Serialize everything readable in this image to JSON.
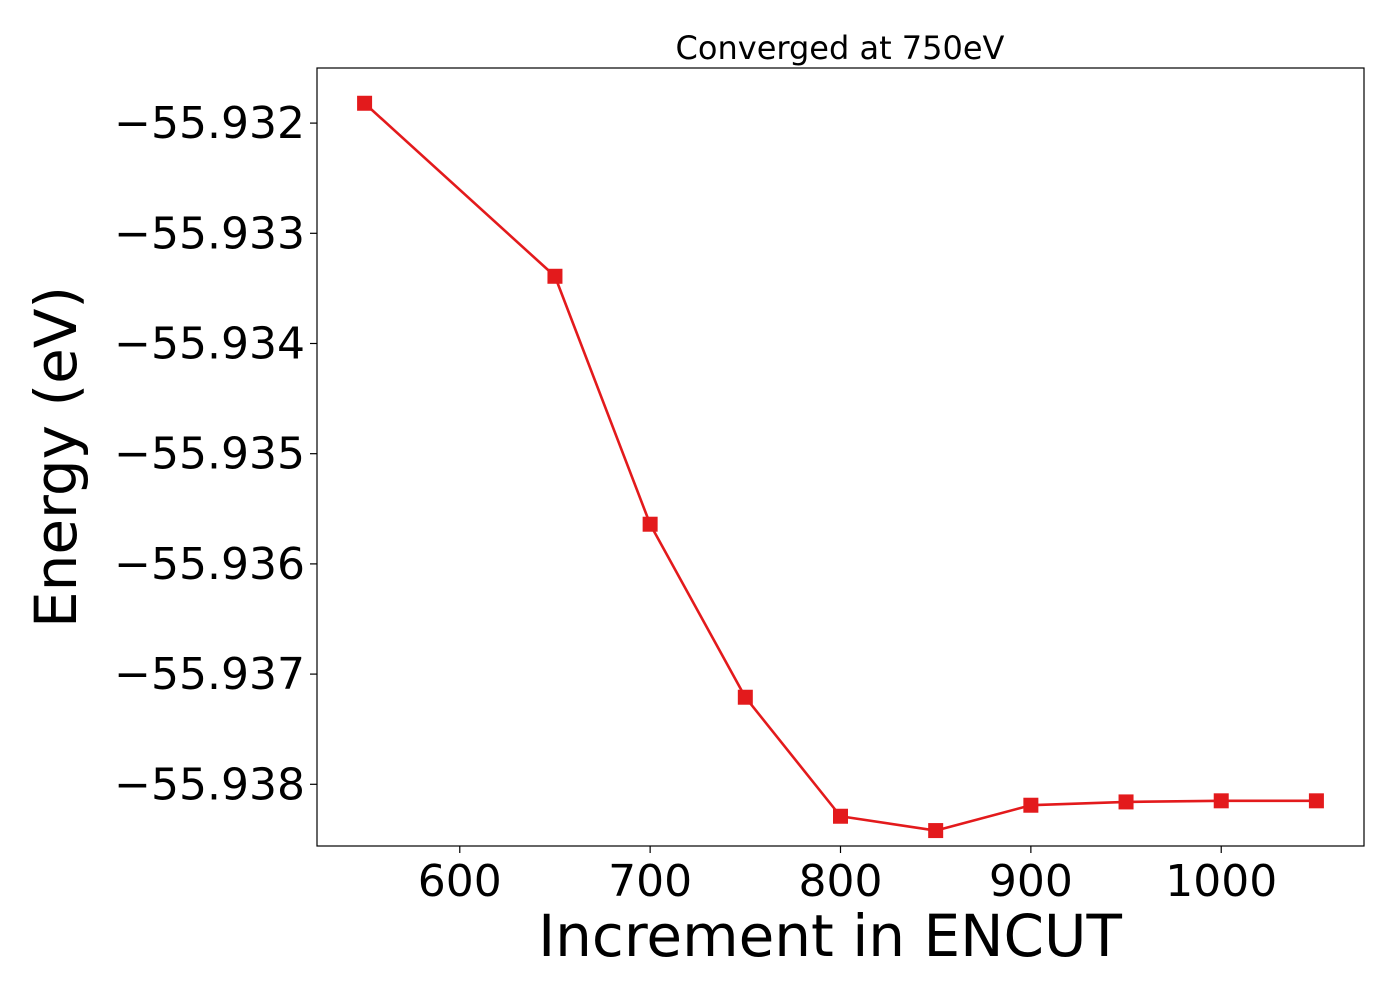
{
  "chart_data": {
    "type": "line",
    "title": "Converged at 750eV",
    "xlabel": "Increment in ENCUT",
    "ylabel": "Energy (eV)",
    "x": [
      550,
      650,
      700,
      750,
      800,
      850,
      900,
      950,
      1000,
      1050
    ],
    "series": [
      {
        "values": [
          -55.93182,
          -55.93339,
          -55.93564,
          -55.93721,
          -55.93829,
          -55.93842,
          -55.93819,
          -55.93816,
          -55.93815,
          -55.93815
        ],
        "color": "#e31a1c",
        "marker": "square"
      }
    ],
    "xlim": [
      525,
      1075
    ],
    "ylim": [
      -55.93856,
      -55.9315
    ],
    "xticks": [
      600,
      700,
      800,
      900,
      1000
    ],
    "xtick_labels": [
      "600",
      "700",
      "800",
      "900",
      "1000"
    ],
    "yticks": [
      -55.932,
      -55.933,
      -55.934,
      -55.935,
      -55.936,
      -55.937,
      -55.938
    ],
    "ytick_labels": [
      "−55.932",
      "−55.933",
      "−55.934",
      "−55.935",
      "−55.936",
      "−55.937",
      "−55.938"
    ],
    "grid": false,
    "legend": "none"
  }
}
